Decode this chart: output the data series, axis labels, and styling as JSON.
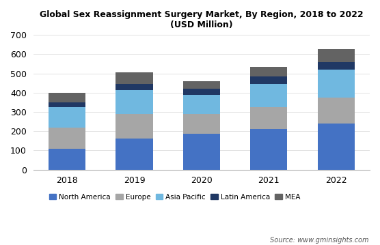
{
  "years": [
    "2018",
    "2019",
    "2020",
    "2021",
    "2022"
  ],
  "series": {
    "North America": [
      110,
      160,
      185,
      210,
      240
    ],
    "Europe": [
      110,
      130,
      105,
      115,
      135
    ],
    "Asia Pacific": [
      105,
      125,
      100,
      120,
      145
    ],
    "Latin America": [
      25,
      30,
      30,
      40,
      40
    ],
    "MEA": [
      50,
      60,
      40,
      50,
      65
    ]
  },
  "colors": {
    "North America": "#4472c4",
    "Europe": "#a6a6a6",
    "Asia Pacific": "#70b8e0",
    "Latin America": "#203864",
    "MEA": "#636363"
  },
  "title_line1": "Global Sex Reassignment Surgery Market, By Region, 2018 to 2022",
  "title_line2": "(USD Million)",
  "ylim": [
    0,
    700
  ],
  "yticks": [
    0,
    100,
    200,
    300,
    400,
    500,
    600,
    700
  ],
  "source_text": "Source: www.gminsights.com",
  "bar_width": 0.55,
  "legend_order": [
    "North America",
    "Europe",
    "Asia Pacific",
    "Latin America",
    "MEA"
  ],
  "background_color": "#ffffff"
}
